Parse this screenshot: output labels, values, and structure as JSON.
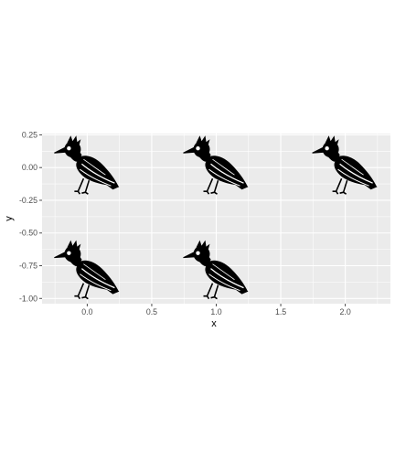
{
  "chart_data": {
    "type": "scatter",
    "marker": "bird-icon",
    "x": [
      0,
      1,
      2,
      0,
      1
    ],
    "y": [
      0,
      0,
      0,
      -0.8,
      -0.8
    ],
    "xlim": [
      -0.35,
      2.35
    ],
    "ylim": [
      -1.04,
      0.26
    ],
    "xticks": [
      0,
      0.5,
      1,
      1.5,
      2
    ],
    "xtick_labels": [
      "0.0",
      "0.5",
      "1.0",
      "1.5",
      "2.0"
    ],
    "yticks": [
      0.25,
      0,
      -0.25,
      -0.5,
      -0.75,
      -1
    ],
    "ytick_labels": [
      "0.25",
      "0.00",
      "-0.25",
      "-0.50",
      "-0.75",
      "-1.00"
    ],
    "xlabel": "x",
    "ylabel": "y",
    "grid": true,
    "colors": {
      "panel": "#ebebeb",
      "grid_major": "#ffffff",
      "marker": "#000000",
      "tick": "#4d4d4d"
    }
  }
}
